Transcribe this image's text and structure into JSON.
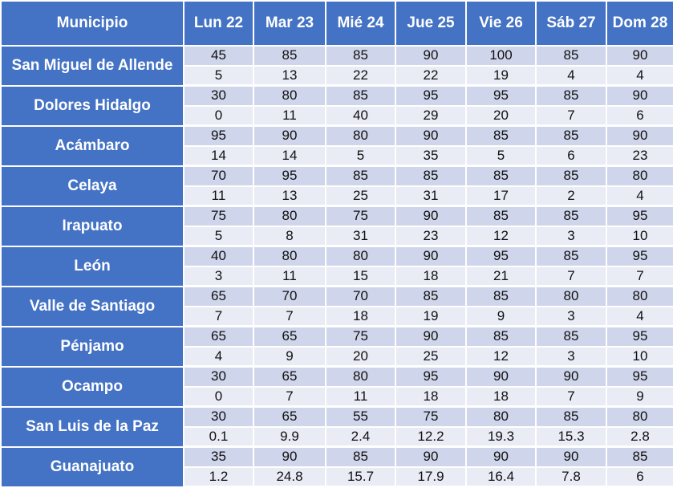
{
  "colors": {
    "header": "#4472C4",
    "row_dark": "#CFD5EA",
    "row_light": "#E9EBF5"
  },
  "headers": [
    "Municipio",
    "Lun 22",
    "Mar 23",
    "Mié 24",
    "Jue 25",
    "Vie 26",
    "Sáb 27",
    "Dom 28"
  ],
  "rows": [
    {
      "municipio": "San Miguel de Allende",
      "a": [
        "45",
        "85",
        "85",
        "90",
        "100",
        "85",
        "90"
      ],
      "b": [
        "5",
        "13",
        "22",
        "22",
        "19",
        "4",
        "4"
      ]
    },
    {
      "municipio": "Dolores Hidalgo",
      "a": [
        "30",
        "80",
        "85",
        "95",
        "95",
        "85",
        "90"
      ],
      "b": [
        "0",
        "11",
        "40",
        "29",
        "20",
        "7",
        "6"
      ]
    },
    {
      "municipio": "Acámbaro",
      "a": [
        "95",
        "90",
        "80",
        "90",
        "85",
        "85",
        "90"
      ],
      "b": [
        "14",
        "14",
        "5",
        "35",
        "5",
        "6",
        "23"
      ]
    },
    {
      "municipio": "Celaya",
      "a": [
        "70",
        "95",
        "85",
        "85",
        "85",
        "85",
        "80"
      ],
      "b": [
        "11",
        "13",
        "25",
        "31",
        "17",
        "2",
        "4"
      ]
    },
    {
      "municipio": "Irapuato",
      "a": [
        "75",
        "80",
        "75",
        "90",
        "85",
        "85",
        "95"
      ],
      "b": [
        "5",
        "8",
        "31",
        "23",
        "12",
        "3",
        "10"
      ]
    },
    {
      "municipio": "León",
      "a": [
        "40",
        "80",
        "80",
        "90",
        "95",
        "85",
        "95"
      ],
      "b": [
        "3",
        "11",
        "15",
        "18",
        "21",
        "7",
        "7"
      ]
    },
    {
      "municipio": "Valle de Santiago",
      "a": [
        "65",
        "70",
        "70",
        "85",
        "85",
        "80",
        "80"
      ],
      "b": [
        "7",
        "7",
        "18",
        "19",
        "9",
        "3",
        "4"
      ]
    },
    {
      "municipio": "Pénjamo",
      "a": [
        "65",
        "65",
        "75",
        "90",
        "85",
        "85",
        "95"
      ],
      "b": [
        "4",
        "9",
        "20",
        "25",
        "12",
        "3",
        "10"
      ]
    },
    {
      "municipio": "Ocampo",
      "a": [
        "30",
        "65",
        "80",
        "95",
        "90",
        "90",
        "95"
      ],
      "b": [
        "0",
        "7",
        "11",
        "18",
        "18",
        "7",
        "9"
      ]
    },
    {
      "municipio": "San Luis de la Paz",
      "a": [
        "30",
        "65",
        "55",
        "75",
        "80",
        "85",
        "80"
      ],
      "b": [
        "0.1",
        "9.9",
        "2.4",
        "12.2",
        "19.3",
        "15.3",
        "2.8"
      ]
    },
    {
      "municipio": "Guanajuato",
      "a": [
        "35",
        "90",
        "85",
        "90",
        "90",
        "90",
        "85"
      ],
      "b": [
        "1.2",
        "24.8",
        "15.7",
        "17.9",
        "16.4",
        "7.8",
        "6"
      ]
    }
  ]
}
